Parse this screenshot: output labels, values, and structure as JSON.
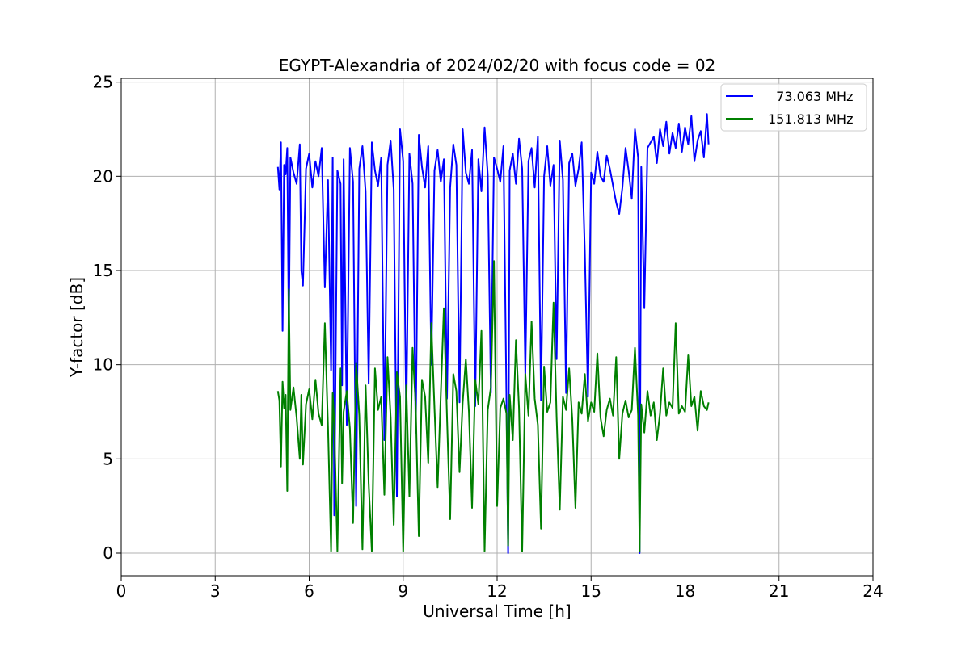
{
  "chart_data": {
    "type": "line",
    "title": "EGYPT-Alexandria of 2024/02/20 with focus code = 02",
    "xlabel": "Universal Time [h]",
    "ylabel": "Y-factor [dB]",
    "xlim": [
      0,
      24
    ],
    "ylim": [
      -1.2,
      25.2
    ],
    "xticks": [
      0,
      3,
      6,
      9,
      12,
      15,
      18,
      21,
      24
    ],
    "yticks": [
      0,
      5,
      10,
      15,
      20,
      25
    ],
    "grid": true,
    "legend_position": "top-right",
    "series": [
      {
        "name": "  73.063 MHz",
        "color": "#0000ff",
        "x": [
          5.0,
          5.05,
          5.1,
          5.15,
          5.2,
          5.25,
          5.3,
          5.35,
          5.4,
          5.5,
          5.6,
          5.7,
          5.75,
          5.8,
          5.9,
          6.0,
          6.1,
          6.2,
          6.3,
          6.4,
          6.5,
          6.6,
          6.7,
          6.75,
          6.8,
          6.9,
          7.0,
          7.05,
          7.1,
          7.2,
          7.3,
          7.4,
          7.5,
          7.6,
          7.7,
          7.8,
          7.9,
          8.0,
          8.1,
          8.2,
          8.3,
          8.4,
          8.5,
          8.6,
          8.7,
          8.8,
          8.9,
          9.0,
          9.1,
          9.2,
          9.3,
          9.4,
          9.5,
          9.6,
          9.7,
          9.8,
          9.9,
          10.0,
          10.1,
          10.2,
          10.3,
          10.4,
          10.5,
          10.6,
          10.7,
          10.8,
          10.9,
          11.0,
          11.1,
          11.2,
          11.3,
          11.4,
          11.5,
          11.6,
          11.7,
          11.8,
          11.9,
          12.0,
          12.1,
          12.2,
          12.3,
          12.35,
          12.4,
          12.5,
          12.6,
          12.7,
          12.8,
          12.9,
          13.0,
          13.1,
          13.2,
          13.3,
          13.4,
          13.5,
          13.6,
          13.7,
          13.8,
          13.9,
          14.0,
          14.1,
          14.2,
          14.3,
          14.4,
          14.5,
          14.6,
          14.7,
          14.8,
          14.9,
          15.0,
          15.1,
          15.2,
          15.3,
          15.4,
          15.5,
          15.6,
          15.7,
          15.8,
          15.9,
          16.0,
          16.1,
          16.2,
          16.3,
          16.4,
          16.5,
          16.55,
          16.6,
          16.7,
          16.8,
          16.9,
          17.0,
          17.1,
          17.2,
          17.3,
          17.4,
          17.5,
          17.6,
          17.7,
          17.8,
          17.9,
          18.0,
          18.1,
          18.2,
          18.3,
          18.4,
          18.5,
          18.6,
          18.7,
          18.75
        ],
        "y": [
          20.5,
          19.3,
          21.8,
          11.8,
          20.6,
          20.1,
          21.5,
          11.4,
          21.0,
          20.2,
          19.6,
          21.7,
          15.0,
          14.2,
          20.4,
          21.2,
          19.4,
          20.8,
          20.0,
          21.5,
          14.1,
          19.8,
          9.7,
          21.0,
          2.0,
          20.3,
          19.6,
          8.9,
          20.9,
          6.8,
          21.5,
          19.7,
          2.5,
          20.4,
          21.6,
          19.2,
          9.0,
          21.8,
          20.3,
          19.5,
          21.0,
          6.0,
          20.6,
          21.9,
          19.3,
          3.0,
          22.5,
          20.8,
          7.0,
          21.2,
          19.6,
          6.4,
          22.2,
          20.5,
          19.4,
          21.6,
          10.0,
          20.3,
          21.4,
          19.7,
          20.9,
          8.2,
          19.4,
          21.7,
          20.6,
          8.0,
          22.5,
          20.2,
          19.6,
          21.4,
          7.8,
          20.9,
          19.2,
          22.6,
          20.1,
          8.5,
          21.0,
          20.4,
          19.7,
          21.6,
          8.0,
          0.0,
          20.3,
          21.2,
          19.6,
          22.0,
          20.4,
          9.5,
          20.8,
          21.5,
          19.4,
          22.1,
          8.1,
          20.0,
          21.6,
          19.5,
          20.6,
          10.3,
          21.9,
          19.8,
          8.5,
          20.7,
          21.2,
          19.5,
          20.4,
          21.8,
          16.0,
          8.3,
          20.2,
          19.6,
          21.3,
          20.0,
          19.7,
          21.1,
          20.4,
          19.5,
          18.6,
          18.0,
          19.4,
          21.5,
          20.3,
          18.8,
          22.5,
          21.0,
          0.0,
          20.5,
          13.0,
          21.5,
          21.8,
          22.1,
          20.7,
          22.5,
          21.6,
          22.9,
          21.2,
          22.3,
          21.5,
          22.8,
          21.3,
          22.6,
          21.7,
          23.2,
          20.8,
          21.9,
          22.4,
          21.0,
          23.3,
          21.7
        ]
      },
      {
        "name": "151.813 MHz",
        "color": "#008000",
        "x": [
          5.0,
          5.05,
          5.1,
          5.15,
          5.2,
          5.25,
          5.3,
          5.35,
          5.4,
          5.5,
          5.6,
          5.7,
          5.75,
          5.8,
          5.9,
          6.0,
          6.1,
          6.2,
          6.3,
          6.4,
          6.5,
          6.6,
          6.7,
          6.75,
          6.8,
          6.9,
          7.0,
          7.05,
          7.1,
          7.2,
          7.3,
          7.4,
          7.5,
          7.6,
          7.7,
          7.8,
          7.9,
          8.0,
          8.1,
          8.2,
          8.3,
          8.4,
          8.5,
          8.6,
          8.7,
          8.8,
          8.9,
          9.0,
          9.1,
          9.2,
          9.3,
          9.4,
          9.5,
          9.6,
          9.7,
          9.8,
          9.9,
          10.0,
          10.1,
          10.2,
          10.3,
          10.4,
          10.5,
          10.6,
          10.7,
          10.8,
          10.9,
          11.0,
          11.1,
          11.2,
          11.3,
          11.4,
          11.5,
          11.6,
          11.7,
          11.8,
          11.9,
          12.0,
          12.1,
          12.2,
          12.3,
          12.35,
          12.4,
          12.5,
          12.6,
          12.7,
          12.8,
          12.9,
          13.0,
          13.1,
          13.2,
          13.3,
          13.4,
          13.5,
          13.6,
          13.7,
          13.8,
          13.9,
          14.0,
          14.1,
          14.2,
          14.3,
          14.4,
          14.5,
          14.6,
          14.7,
          14.8,
          14.9,
          15.0,
          15.1,
          15.2,
          15.3,
          15.4,
          15.5,
          15.6,
          15.7,
          15.8,
          15.9,
          16.0,
          16.1,
          16.2,
          16.3,
          16.4,
          16.5,
          16.55,
          16.6,
          16.7,
          16.8,
          16.9,
          17.0,
          17.1,
          17.2,
          17.3,
          17.4,
          17.5,
          17.6,
          17.7,
          17.8,
          17.9,
          18.0,
          18.1,
          18.2,
          18.3,
          18.4,
          18.5,
          18.6,
          18.7,
          18.75
        ],
        "y": [
          8.6,
          8.1,
          4.6,
          9.1,
          7.7,
          8.4,
          3.3,
          14.0,
          7.6,
          8.8,
          7.2,
          5.0,
          8.4,
          4.7,
          7.9,
          8.7,
          7.1,
          9.2,
          7.4,
          6.8,
          12.2,
          6.7,
          0.1,
          8.5,
          6.9,
          0.1,
          9.8,
          3.7,
          7.5,
          8.6,
          6.6,
          1.6,
          10.1,
          7.3,
          0.2,
          8.9,
          3.7,
          0.1,
          9.8,
          7.6,
          8.3,
          3.1,
          10.4,
          7.2,
          1.5,
          9.6,
          8.3,
          0.1,
          8.9,
          3.0,
          10.9,
          7.8,
          0.9,
          9.2,
          8.3,
          4.8,
          12.2,
          7.7,
          3.5,
          8.4,
          13.0,
          7.2,
          1.8,
          9.5,
          8.6,
          4.3,
          8.0,
          10.3,
          7.5,
          2.4,
          9.2,
          7.9,
          11.8,
          0.1,
          7.6,
          8.8,
          15.5,
          2.5,
          7.7,
          8.2,
          7.4,
          0.4,
          8.4,
          6.0,
          11.3,
          7.7,
          0.1,
          9.5,
          7.3,
          12.3,
          8.2,
          6.8,
          1.3,
          9.9,
          7.5,
          8.0,
          13.3,
          7.2,
          2.3,
          8.3,
          7.6,
          9.8,
          7.1,
          2.4,
          8.0,
          7.4,
          9.5,
          7.0,
          8.0,
          7.5,
          10.6,
          7.2,
          6.2,
          7.6,
          8.2,
          7.3,
          10.4,
          5.0,
          7.4,
          8.1,
          7.2,
          7.6,
          10.9,
          7.3,
          0.1,
          7.9,
          6.4,
          8.6,
          7.3,
          8.0,
          6.0,
          7.4,
          9.8,
          7.3,
          8.0,
          7.7,
          12.2,
          7.4,
          7.8,
          7.5,
          10.5,
          7.8,
          8.3,
          6.5,
          8.6,
          7.8,
          7.6,
          8.0
        ]
      }
    ]
  }
}
